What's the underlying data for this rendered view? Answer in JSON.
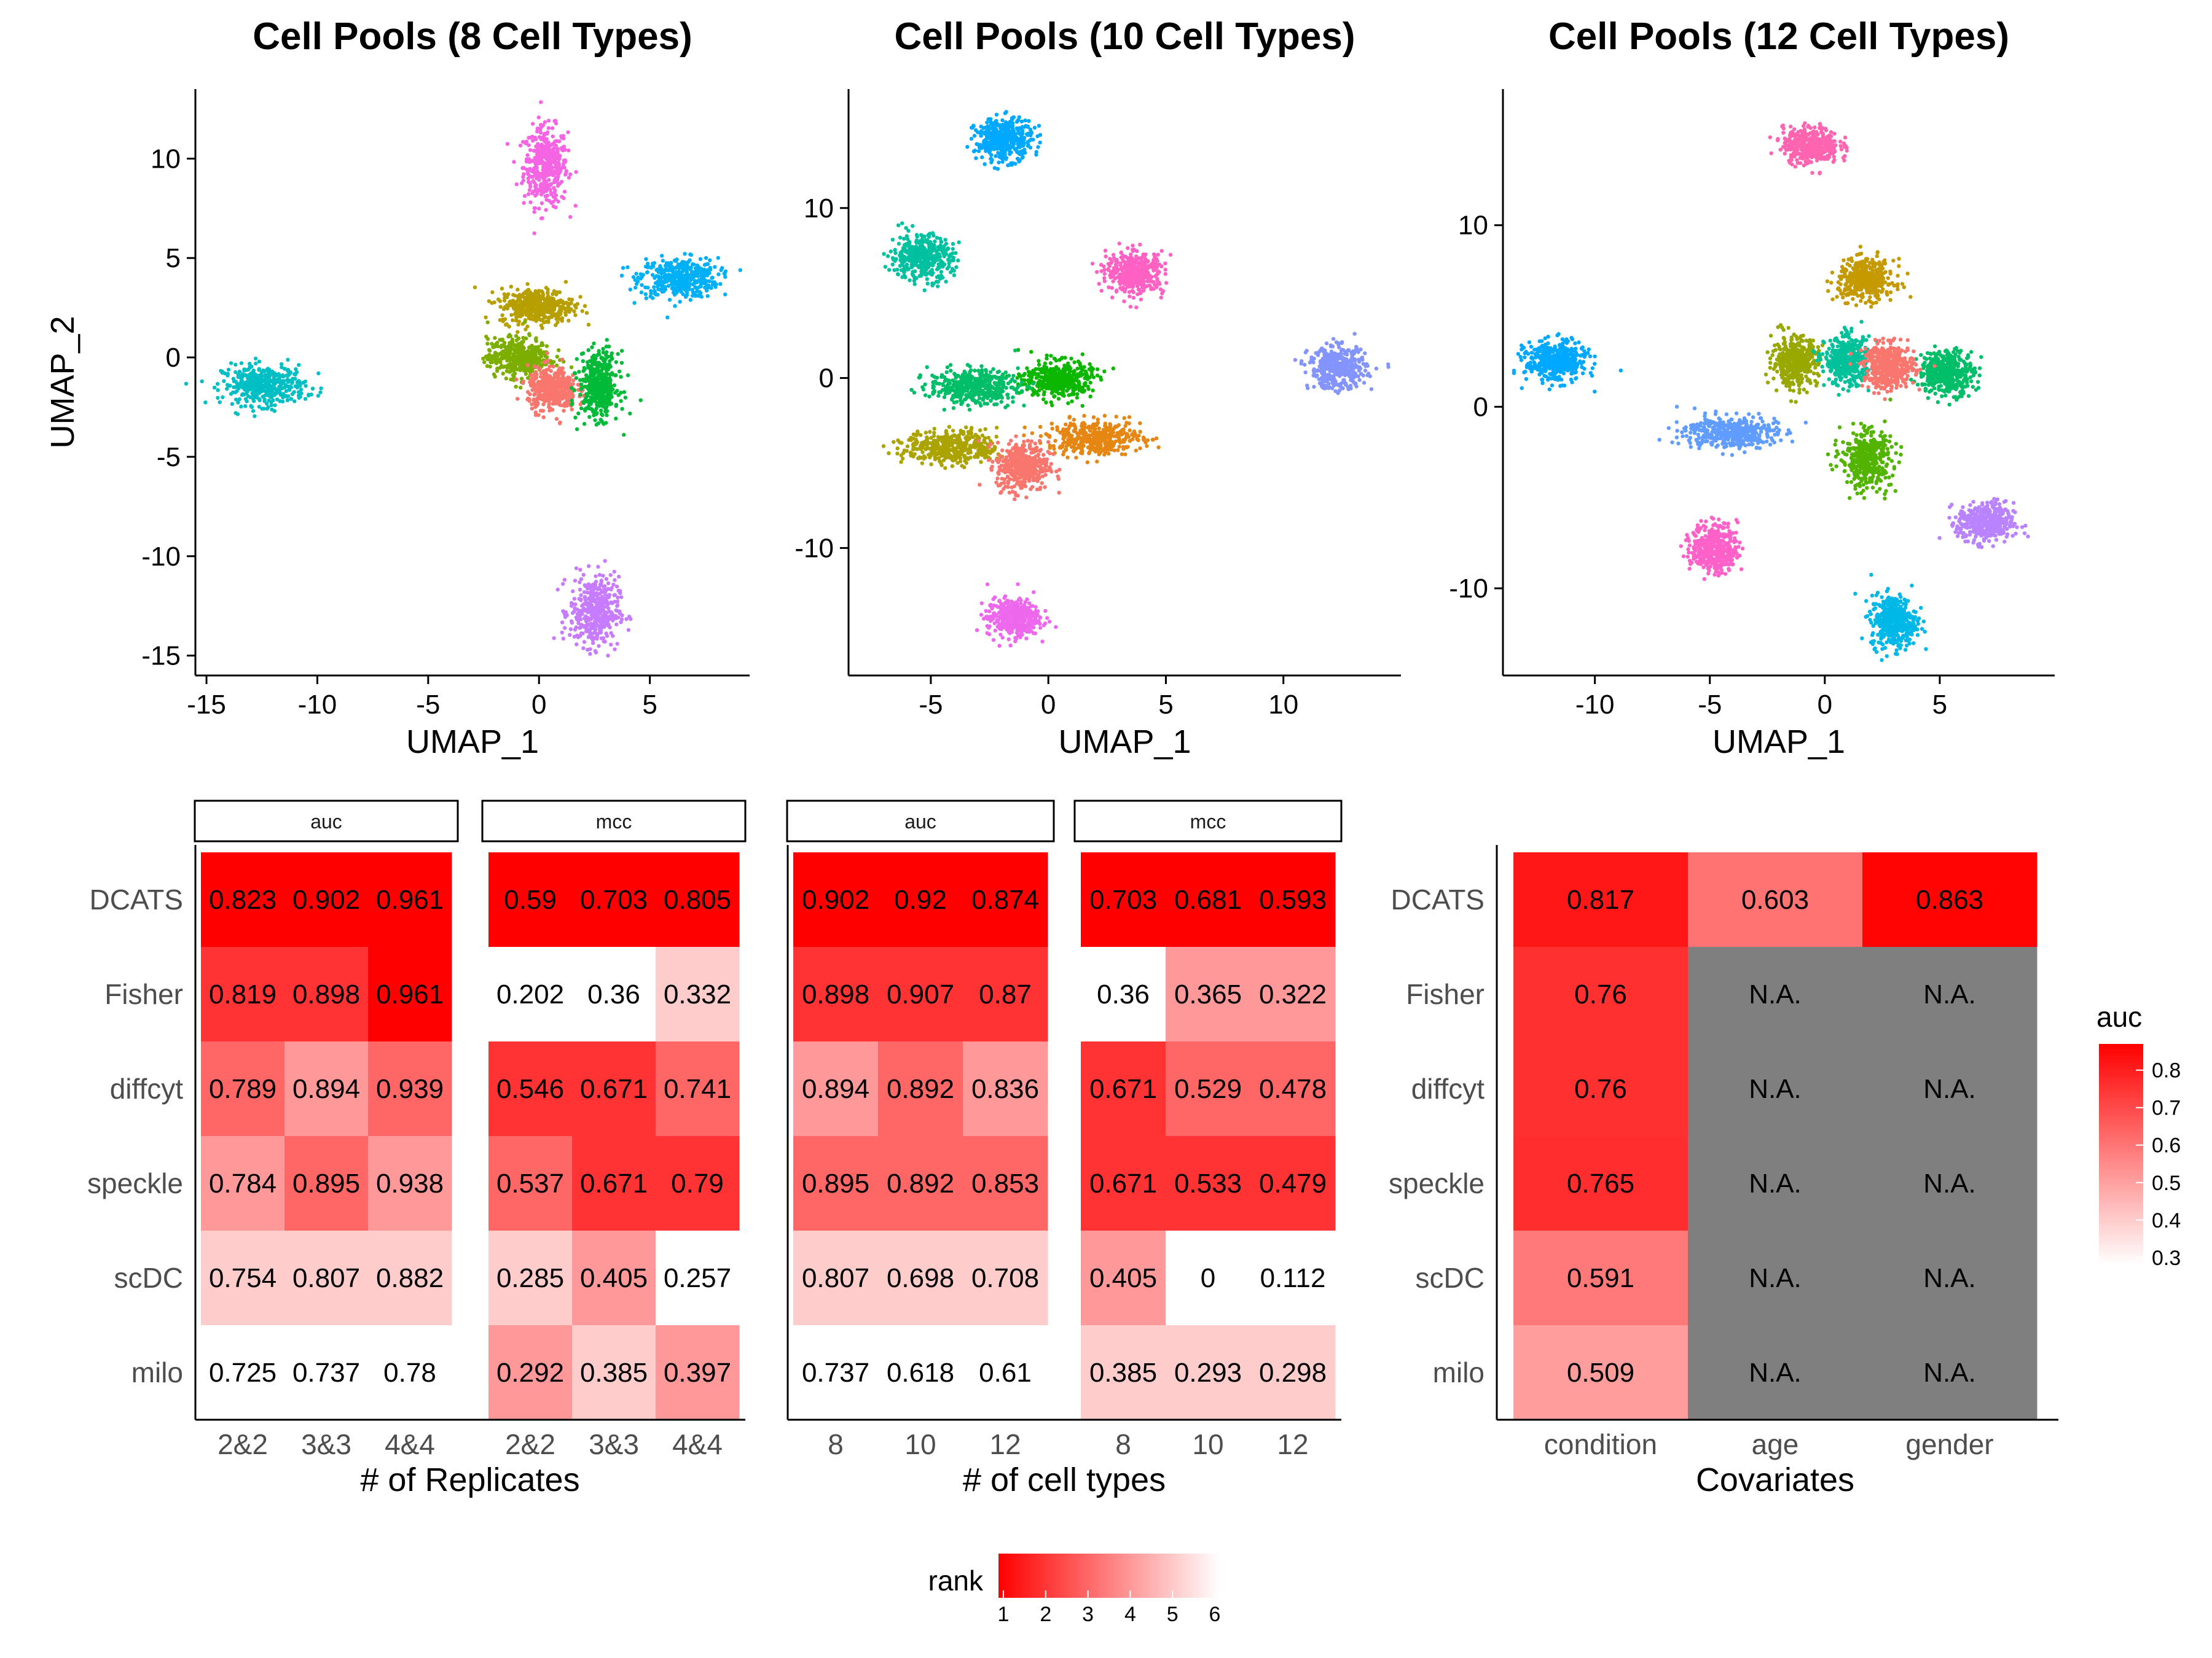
{
  "chart_data": [
    {
      "type": "scatter",
      "title": "Cell Pools (8 Cell Types)",
      "xlabel": "UMAP_1",
      "ylabel": "UMAP_2",
      "xlim": [
        -15.5,
        9.5
      ],
      "ylim": [
        -16,
        13.5
      ],
      "xticks": [
        -15,
        -10,
        -5,
        0,
        5
      ],
      "yticks": [
        -15,
        -10,
        -5,
        0,
        5,
        10
      ],
      "clusters": [
        {
          "color": "#F564E3",
          "x": 0.3,
          "y": 9.6,
          "sx": 0.9,
          "sy": 1.8
        },
        {
          "color": "#00B0F6",
          "x": 6.3,
          "y": 4.0,
          "sx": 1.6,
          "sy": 0.9
        },
        {
          "color": "#00BFC4",
          "x": -12.4,
          "y": -1.4,
          "sx": 1.7,
          "sy": 0.9
        },
        {
          "color": "#C77CFF",
          "x": 2.5,
          "y": -12.8,
          "sx": 1.0,
          "sy": 1.6
        },
        {
          "color": "#B79F00",
          "x": -0.1,
          "y": 2.6,
          "sx": 1.5,
          "sy": 0.8
        },
        {
          "color": "#7CAE00",
          "x": -0.9,
          "y": 0.0,
          "sx": 1.3,
          "sy": 0.9
        },
        {
          "color": "#F8766D",
          "x": 0.6,
          "y": -1.6,
          "sx": 1.0,
          "sy": 1.0
        },
        {
          "color": "#00BA38",
          "x": 2.7,
          "y": -1.4,
          "sx": 0.8,
          "sy": 1.5
        }
      ]
    },
    {
      "type": "scatter",
      "title": "Cell Pools (10 Cell Types)",
      "xlabel": "UMAP_1",
      "ylabel": "",
      "xlim": [
        -8.5,
        15
      ],
      "ylim": [
        -17.5,
        17
      ],
      "xticks": [
        -5,
        0,
        5,
        10
      ],
      "yticks": [
        -10,
        0,
        10
      ],
      "clusters": [
        {
          "color": "#00A9FF",
          "x": -1.9,
          "y": 14.0,
          "sx": 1.1,
          "sy": 1.1
        },
        {
          "color": "#00C19F",
          "x": -5.4,
          "y": 7.1,
          "sx": 1.2,
          "sy": 1.2
        },
        {
          "color": "#FF61C3",
          "x": 3.7,
          "y": 6.2,
          "sx": 1.1,
          "sy": 1.1
        },
        {
          "color": "#8494FF",
          "x": 12.3,
          "y": 0.6,
          "sx": 1.1,
          "sy": 1.1
        },
        {
          "color": "#E68613",
          "x": 2.0,
          "y": -3.5,
          "sx": 1.8,
          "sy": 0.9
        },
        {
          "color": "#0CB702",
          "x": 0.4,
          "y": -0.1,
          "sx": 1.3,
          "sy": 1.0
        },
        {
          "color": "#00BE67",
          "x": -3.2,
          "y": -0.5,
          "sx": 1.7,
          "sy": 0.9
        },
        {
          "color": "#ABA300",
          "x": -4.1,
          "y": -4.1,
          "sx": 1.8,
          "sy": 0.9
        },
        {
          "color": "#F8766D",
          "x": -1.1,
          "y": -5.2,
          "sx": 1.0,
          "sy": 1.3
        },
        {
          "color": "#ED68ED",
          "x": -1.5,
          "y": -14.1,
          "sx": 1.0,
          "sy": 1.0
        }
      ]
    },
    {
      "type": "scatter",
      "title": "Cell Pools (12 Cell Types)",
      "xlabel": "UMAP_1",
      "ylabel": "",
      "xlim": [
        -14,
        10
      ],
      "ylim": [
        -14.8,
        17.5
      ],
      "xticks": [
        -10,
        -5,
        0,
        5
      ],
      "yticks": [
        -10,
        0,
        10
      ],
      "clusters": [
        {
          "color": "#FF64B0",
          "x": -0.6,
          "y": 14.4,
          "sx": 1.1,
          "sy": 0.9
        },
        {
          "color": "#C49A00",
          "x": 1.8,
          "y": 7.0,
          "sx": 1.1,
          "sy": 1.0
        },
        {
          "color": "#00A9FF",
          "x": -11.7,
          "y": 2.5,
          "sx": 1.2,
          "sy": 1.0
        },
        {
          "color": "#00BE67",
          "x": 5.3,
          "y": 1.9,
          "sx": 1.1,
          "sy": 1.1
        },
        {
          "color": "#99A800",
          "x": -1.3,
          "y": 2.5,
          "sx": 0.9,
          "sy": 1.2
        },
        {
          "color": "#00C19A",
          "x": 1.0,
          "y": 2.5,
          "sx": 0.9,
          "sy": 1.2
        },
        {
          "color": "#F8766D",
          "x": 2.8,
          "y": 2.2,
          "sx": 1.0,
          "sy": 1.1
        },
        {
          "color": "#619CFF",
          "x": -4.1,
          "y": -1.4,
          "sx": 1.8,
          "sy": 0.8
        },
        {
          "color": "#53B400",
          "x": 1.8,
          "y": -2.9,
          "sx": 1.0,
          "sy": 1.4
        },
        {
          "color": "#FF61C9",
          "x": -4.8,
          "y": -7.8,
          "sx": 0.9,
          "sy": 1.2
        },
        {
          "color": "#B983FF",
          "x": 7.0,
          "y": -6.4,
          "sx": 1.1,
          "sy": 1.0
        },
        {
          "color": "#00B8E7",
          "x": 3.0,
          "y": -11.8,
          "sx": 0.9,
          "sy": 1.3
        }
      ]
    },
    {
      "type": "heatmap",
      "xlabel": "# of Replicates",
      "rows": [
        "DCATS",
        "Fisher",
        "diffcyt",
        "speckle",
        "scDC",
        "milo"
      ],
      "facets": [
        {
          "strip": "auc",
          "columns": [
            "2&2",
            "3&3",
            "4&4"
          ],
          "values": [
            [
              "0.823",
              "0.902",
              "0.961"
            ],
            [
              "0.819",
              "0.898",
              "0.961"
            ],
            [
              "0.789",
              "0.894",
              "0.939"
            ],
            [
              "0.784",
              "0.895",
              "0.938"
            ],
            [
              "0.754",
              "0.807",
              "0.882"
            ],
            [
              "0.725",
              "0.737",
              "0.78"
            ]
          ],
          "rank": [
            [
              1,
              1,
              1
            ],
            [
              2,
              2,
              1
            ],
            [
              3,
              4,
              3
            ],
            [
              4,
              3,
              4
            ],
            [
              5,
              5,
              5
            ],
            [
              6,
              6,
              6
            ]
          ]
        },
        {
          "strip": "mcc",
          "columns": [
            "2&2",
            "3&3",
            "4&4"
          ],
          "values": [
            [
              "0.59",
              "0.703",
              "0.805"
            ],
            [
              "0.202",
              "0.36",
              "0.332"
            ],
            [
              "0.546",
              "0.671",
              "0.741"
            ],
            [
              "0.537",
              "0.671",
              "0.79"
            ],
            [
              "0.285",
              "0.405",
              "0.257"
            ],
            [
              "0.292",
              "0.385",
              "0.397"
            ]
          ],
          "rank": [
            [
              1,
              1,
              1
            ],
            [
              6,
              6,
              5
            ],
            [
              2,
              2,
              3
            ],
            [
              3,
              2,
              2
            ],
            [
              5,
              4,
              6
            ],
            [
              4,
              5,
              4
            ]
          ]
        }
      ]
    },
    {
      "type": "heatmap",
      "xlabel": "# of cell types",
      "rows": [
        "DCATS",
        "Fisher",
        "diffcyt",
        "speckle",
        "scDC",
        "milo"
      ],
      "facets": [
        {
          "strip": "auc",
          "columns": [
            "8",
            "10",
            "12"
          ],
          "values": [
            [
              "0.902",
              "0.92",
              "0.874"
            ],
            [
              "0.898",
              "0.907",
              "0.87"
            ],
            [
              "0.894",
              "0.892",
              "0.836"
            ],
            [
              "0.895",
              "0.892",
              "0.853"
            ],
            [
              "0.807",
              "0.698",
              "0.708"
            ],
            [
              "0.737",
              "0.618",
              "0.61"
            ]
          ],
          "rank": [
            [
              1,
              1,
              1
            ],
            [
              2,
              2,
              2
            ],
            [
              4,
              3,
              4
            ],
            [
              3,
              3,
              3
            ],
            [
              5,
              5,
              5
            ],
            [
              6,
              6,
              6
            ]
          ]
        },
        {
          "strip": "mcc",
          "columns": [
            "8",
            "10",
            "12"
          ],
          "values": [
            [
              "0.703",
              "0.681",
              "0.593"
            ],
            [
              "0.36",
              "0.365",
              "0.322"
            ],
            [
              "0.671",
              "0.529",
              "0.478"
            ],
            [
              "0.671",
              "0.533",
              "0.479"
            ],
            [
              "0.405",
              "0",
              "0.112"
            ],
            [
              "0.385",
              "0.293",
              "0.298"
            ]
          ],
          "rank": [
            [
              1,
              1,
              1
            ],
            [
              6,
              4,
              4
            ],
            [
              2,
              3,
              3
            ],
            [
              2,
              2,
              2
            ],
            [
              4,
              6,
              6
            ],
            [
              5,
              5,
              5
            ]
          ]
        }
      ]
    },
    {
      "type": "heatmap",
      "xlabel": "Covariates",
      "rows": [
        "DCATS",
        "Fisher",
        "diffcyt",
        "speckle",
        "scDC",
        "milo"
      ],
      "columns": [
        "condition",
        "age",
        "gender"
      ],
      "values": [
        [
          "0.817",
          "0.603",
          "0.863"
        ],
        [
          "0.76",
          "N.A.",
          "N.A."
        ],
        [
          "0.76",
          "N.A.",
          "N.A."
        ],
        [
          "0.765",
          "N.A.",
          "N.A."
        ],
        [
          "0.591",
          "N.A.",
          "N.A."
        ],
        [
          "0.509",
          "N.A.",
          "N.A."
        ]
      ],
      "auc": [
        [
          0.817,
          0.603,
          0.863
        ],
        [
          0.76,
          null,
          null
        ],
        [
          0.76,
          null,
          null
        ],
        [
          0.765,
          null,
          null
        ],
        [
          0.591,
          null,
          null
        ],
        [
          0.509,
          null,
          null
        ]
      ],
      "na_color": "#7F7F7F"
    }
  ],
  "legends": {
    "rank": {
      "title": "rank",
      "ticks": [
        "1",
        "2",
        "3",
        "4",
        "5",
        "6"
      ],
      "low_color": "#FF0000",
      "high_color": "#FFFFFF"
    },
    "auc": {
      "title": "auc",
      "ticks": [
        "0.8",
        "0.7",
        "0.6",
        "0.5",
        "0.4",
        "0.3"
      ],
      "tick_values": [
        0.8,
        0.7,
        0.6,
        0.5,
        0.4,
        0.3
      ],
      "range": [
        0.28,
        0.87
      ],
      "low_color": "#FFFFFF",
      "high_color": "#FF0000"
    }
  }
}
